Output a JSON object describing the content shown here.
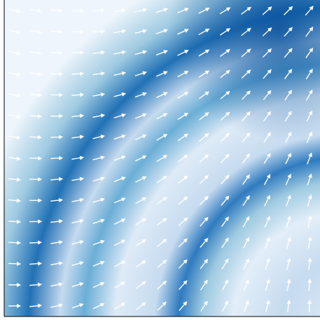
{
  "chart_data": {
    "type": "quiver",
    "color": "#ffffff",
    "x": [
      0,
      1,
      2,
      3,
      4,
      5,
      6,
      7,
      8,
      9,
      10,
      11,
      12,
      13,
      14
    ],
    "y": [
      0,
      1,
      2,
      3,
      4,
      5,
      6,
      7,
      8,
      9,
      10,
      11,
      12,
      13,
      14
    ],
    "xlim": [
      -0.5,
      14.5
    ],
    "ylim": [
      14.5,
      -0.5
    ],
    "angles": [
      [
        -15,
        -10,
        -6,
        -1,
        4,
        8,
        13,
        18,
        22,
        27,
        31,
        36,
        41,
        45,
        50
      ],
      [
        -14,
        -9,
        -4,
        0,
        5,
        10,
        15,
        19,
        24,
        29,
        34,
        38,
        43,
        48,
        53
      ],
      [
        -13,
        -8,
        -3,
        2,
        7,
        11,
        16,
        21,
        26,
        31,
        36,
        41,
        45,
        50,
        55
      ],
      [
        -12,
        -7,
        -2,
        3,
        8,
        13,
        18,
        23,
        28,
        33,
        38,
        43,
        48,
        53,
        58
      ],
      [
        -11,
        -6,
        -1,
        5,
        10,
        15,
        20,
        25,
        30,
        35,
        40,
        46,
        51,
        56,
        61
      ],
      [
        -10,
        -4,
        1,
        6,
        11,
        17,
        22,
        27,
        32,
        38,
        43,
        48,
        53,
        58,
        64
      ],
      [
        -9,
        -3,
        2,
        7,
        13,
        18,
        24,
        29,
        34,
        40,
        45,
        50,
        56,
        61,
        66
      ],
      [
        -8,
        -2,
        3,
        9,
        14,
        20,
        25,
        31,
        36,
        42,
        47,
        53,
        58,
        64,
        69
      ],
      [
        -6,
        -1,
        5,
        10,
        16,
        21,
        27,
        33,
        38,
        44,
        49,
        55,
        61,
        66,
        72
      ],
      [
        -5,
        0,
        6,
        12,
        17,
        23,
        29,
        34,
        40,
        46,
        51,
        57,
        63,
        69,
        74
      ],
      [
        -4,
        1,
        7,
        13,
        19,
        25,
        30,
        36,
        42,
        48,
        54,
        60,
        65,
        71,
        77
      ],
      [
        -3,
        3,
        9,
        14,
        20,
        26,
        32,
        38,
        44,
        50,
        56,
        62,
        68,
        74,
        80
      ],
      [
        -2,
        4,
        10,
        16,
        22,
        28,
        34,
        40,
        46,
        52,
        58,
        64,
        71,
        77,
        83
      ],
      [
        -1,
        5,
        11,
        17,
        24,
        30,
        36,
        42,
        48,
        55,
        61,
        67,
        73,
        79,
        85
      ],
      [
        0,
        6,
        13,
        19,
        25,
        31,
        38,
        44,
        50,
        57,
        63,
        69,
        75,
        82,
        88
      ]
    ]
  }
}
